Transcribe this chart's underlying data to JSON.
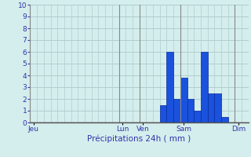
{
  "title": "Précipitations 24h ( mm )",
  "background_color": "#d4eeed",
  "grid_color": "#b0cccc",
  "bar_color": "#1a52dd",
  "bar_edge_color": "#0a2a99",
  "ylim": [
    0,
    10
  ],
  "yticks": [
    0,
    1,
    2,
    3,
    4,
    5,
    6,
    7,
    8,
    9,
    10
  ],
  "label_color": "#3333aa",
  "day_labels": [
    "Jeu",
    "Lun",
    "Ven",
    "Sam",
    "Dim"
  ],
  "day_tick_positions": [
    0,
    13,
    16,
    22,
    30
  ],
  "num_bars": 32,
  "bar_values": [
    0,
    0,
    0,
    0,
    0,
    0,
    0,
    0,
    0,
    0,
    0,
    0,
    0,
    0,
    0,
    0,
    0,
    0,
    0,
    1.5,
    6.0,
    2.0,
    3.8,
    2.0,
    1.0,
    6.0,
    2.5,
    2.5,
    0.5,
    0,
    0,
    0
  ],
  "bar_width": 1.0
}
